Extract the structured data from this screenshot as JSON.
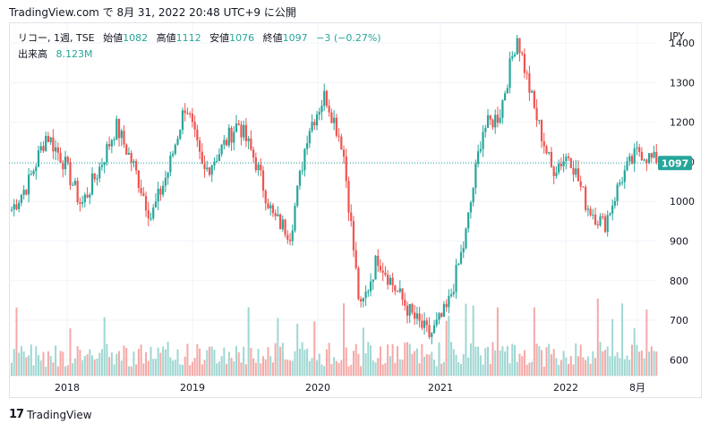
{
  "header": {
    "text": "TradingView.com で 8月 31, 2022 20:48 UTC+9 に公開"
  },
  "legend": {
    "symbol": "リコー, 1週, TSE",
    "open_label": "始値",
    "open": "1082",
    "high_label": "高値",
    "high": "1112",
    "low_label": "安値",
    "low": "1076",
    "close_label": "終値",
    "close": "1097",
    "change": "−3 (−0.27%)",
    "volume_label": "出来高",
    "volume": "8.123M"
  },
  "colors": {
    "up": "#26a69a",
    "down": "#ef5350",
    "up_volume": "#9fd7d2",
    "down_volume": "#f5a9a7",
    "grid": "#f0f3fa",
    "price_tag": "#26a69a"
  },
  "footer": {
    "brand": "TradingView",
    "logo_icon": "tv-logo-icon"
  },
  "chart_data": {
    "type": "candlestick",
    "currency": "JPY",
    "y_ticks": [
      600,
      700,
      800,
      900,
      1000,
      1100,
      1200,
      1300,
      1400
    ],
    "y_range": [
      560,
      1450
    ],
    "x_ticks": [
      "2018",
      "2019",
      "2020",
      "2021",
      "2022",
      "8月"
    ],
    "last_price": "1097",
    "ohlc_weekly_approx": [
      {
        "date": "2017-07",
        "close": 980
      },
      {
        "date": "2017-09",
        "close": 1050
      },
      {
        "date": "2017-11",
        "close": 1170
      },
      {
        "date": "2017-12",
        "close": 1100
      },
      {
        "date": "2018-02",
        "close": 990
      },
      {
        "date": "2018-03",
        "close": 1080
      },
      {
        "date": "2018-05",
        "close": 1190
      },
      {
        "date": "2018-06",
        "close": 1090
      },
      {
        "date": "2018-08",
        "close": 960
      },
      {
        "date": "2018-09",
        "close": 1080
      },
      {
        "date": "2018-10",
        "close": 1250
      },
      {
        "date": "2018-12",
        "close": 1070
      },
      {
        "date": "2019-02",
        "close": 1130
      },
      {
        "date": "2019-04",
        "close": 1200
      },
      {
        "date": "2019-05",
        "close": 1100
      },
      {
        "date": "2019-07",
        "close": 960
      },
      {
        "date": "2019-08",
        "close": 920
      },
      {
        "date": "2019-10",
        "close": 1180
      },
      {
        "date": "2019-12",
        "close": 1270
      },
      {
        "date": "2020-01",
        "close": 1140
      },
      {
        "date": "2020-03",
        "close": 720
      },
      {
        "date": "2020-05",
        "close": 860
      },
      {
        "date": "2020-06",
        "close": 780
      },
      {
        "date": "2020-08",
        "close": 710
      },
      {
        "date": "2020-10",
        "close": 660
      },
      {
        "date": "2020-12",
        "close": 730
      },
      {
        "date": "2021-01",
        "close": 900
      },
      {
        "date": "2021-02",
        "close": 1180
      },
      {
        "date": "2021-04",
        "close": 1220
      },
      {
        "date": "2021-06",
        "close": 1420
      },
      {
        "date": "2021-07",
        "close": 1230
      },
      {
        "date": "2021-09",
        "close": 1080
      },
      {
        "date": "2021-11",
        "close": 1120
      },
      {
        "date": "2022-01",
        "close": 990
      },
      {
        "date": "2022-03",
        "close": 940
      },
      {
        "date": "2022-05",
        "close": 1060
      },
      {
        "date": "2022-06",
        "close": 1130
      },
      {
        "date": "2022-08",
        "close": 1097
      }
    ]
  }
}
